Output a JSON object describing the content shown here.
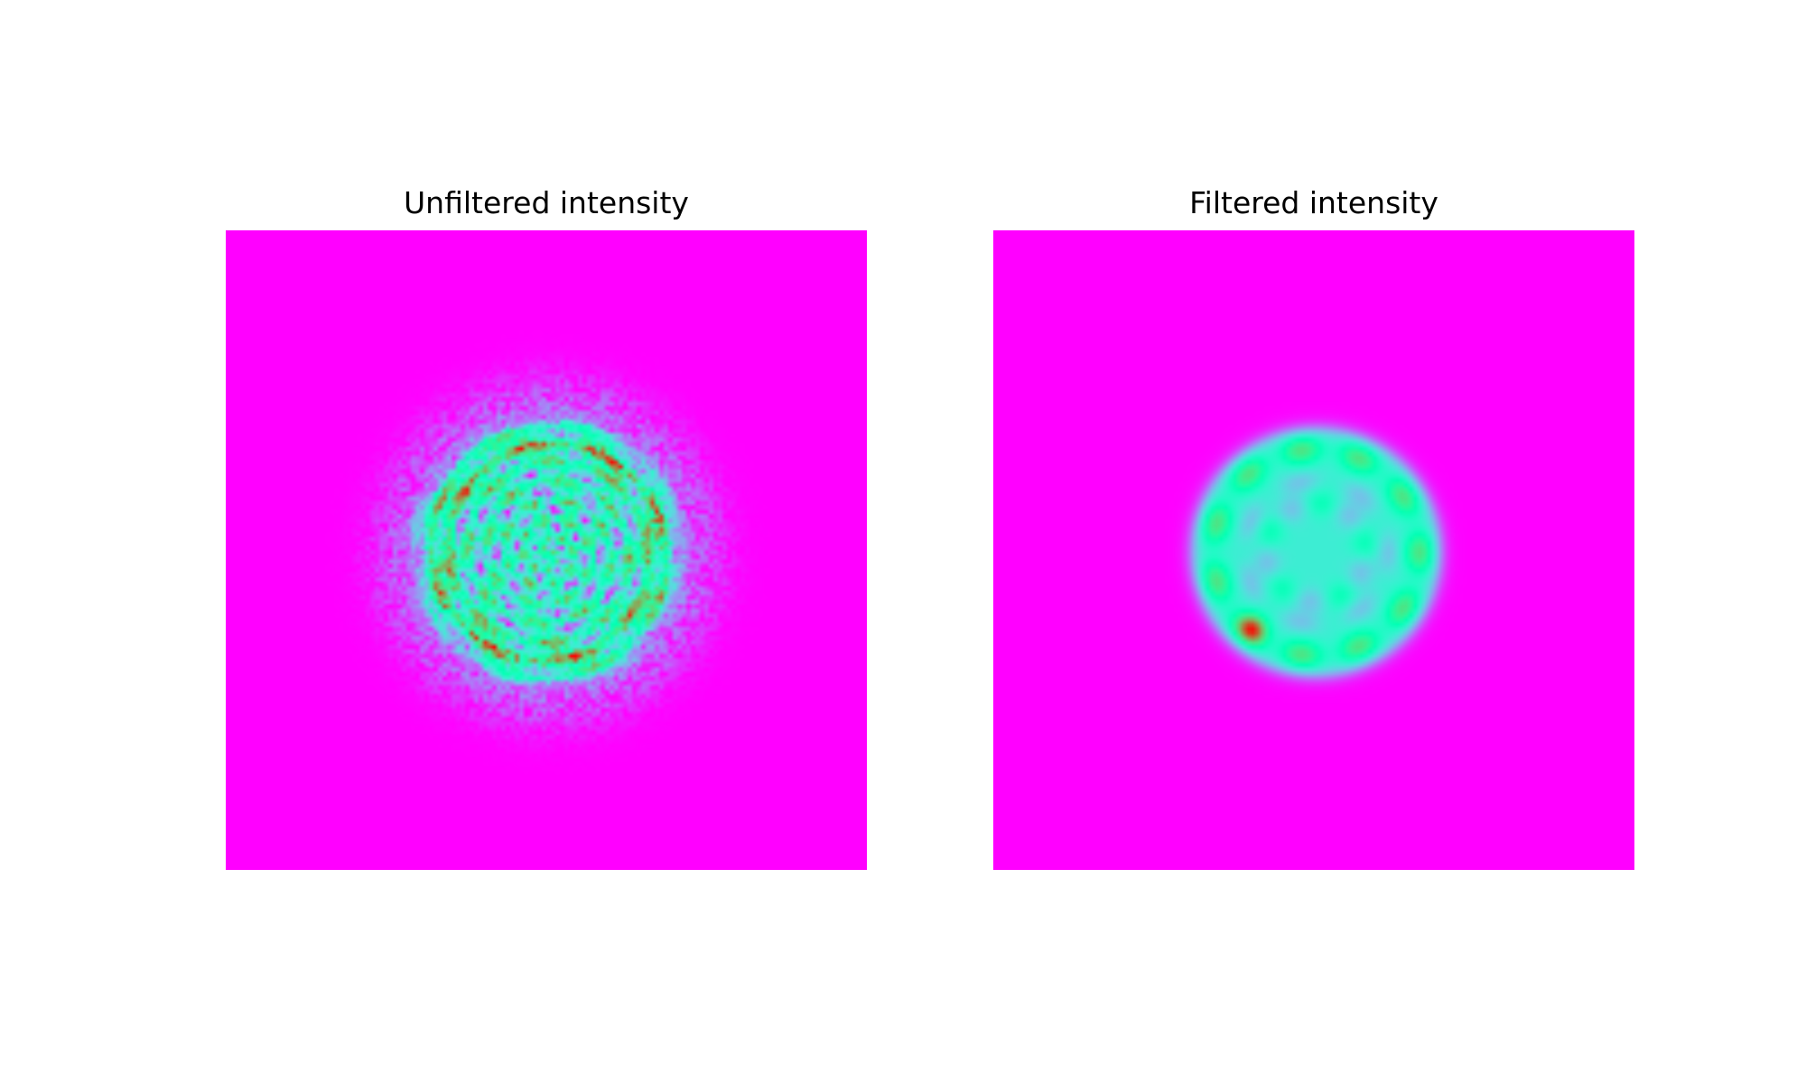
{
  "chart_data": [
    {
      "type": "heatmap",
      "title": "Unfiltered intensity",
      "colormap": "rainbow",
      "axes": "off",
      "grid": false,
      "background_color": "#8000ff",
      "pattern": "noisy speckled disc with ring structure",
      "colors": {
        "min": "#8000ff",
        "mid": "#80ffb4",
        "max": "#ff0000"
      }
    },
    {
      "type": "heatmap",
      "title": "Filtered intensity",
      "colormap": "rainbow",
      "axes": "off",
      "grid": false,
      "background_color": "#8000ff",
      "pattern": "smoothed disc with ring of hot spots",
      "colors": {
        "min": "#8000ff",
        "mid": "#80ffb4",
        "max": "#ff0000"
      }
    }
  ]
}
